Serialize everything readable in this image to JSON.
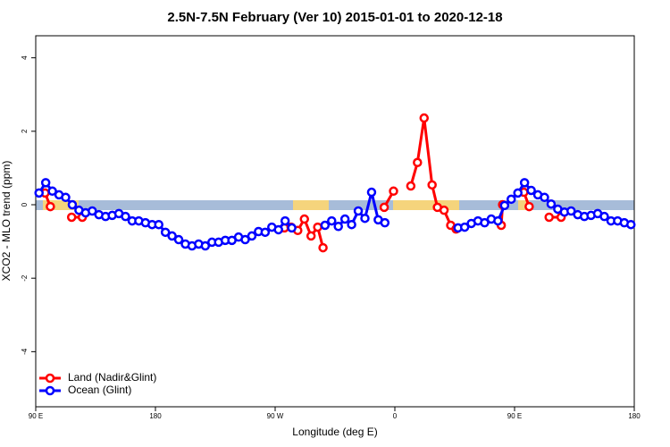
{
  "chart_data": {
    "type": "line",
    "title": "2.5N-7.5N February (Ver 10)   2015-01-01 to 2020-12-18",
    "x_label": "Longitude (deg E)",
    "y_label": "XCO2 - MLO trend (ppm)",
    "xlim": [
      90,
      540
    ],
    "ylim": [
      -5.5,
      4.6
    ],
    "xticks": [
      {
        "value": 90,
        "label": "90 E"
      },
      {
        "value": 180,
        "label": "180"
      },
      {
        "value": 270,
        "label": "90 W"
      },
      {
        "value": 360,
        "label": "0"
      },
      {
        "value": 450,
        "label": "90 E"
      },
      {
        "value": 540,
        "label": "180"
      }
    ],
    "yticks": [
      -4,
      -2,
      0,
      2,
      4
    ],
    "legend": "bottom-left",
    "series": [
      {
        "name": "Land (Nadir&Glint)",
        "color": "#ff0000",
        "x": [
          97,
          101,
          null,
          117,
          125,
          null,
          277,
          282,
          287,
          292,
          297,
          302,
          306,
          null,
          352,
          359,
          null,
          372,
          377,
          382,
          388,
          392,
          397,
          402,
          406,
          null,
          440,
          441,
          null,
          457,
          461,
          null,
          476,
          485
        ],
        "values": [
          0.32,
          -0.05,
          null,
          -0.34,
          -0.34,
          null,
          -0.63,
          -0.61,
          -0.7,
          -0.39,
          -0.85,
          -0.61,
          -1.17,
          null,
          -0.07,
          0.37,
          null,
          0.51,
          1.15,
          2.36,
          0.54,
          -0.07,
          -0.15,
          -0.56,
          -0.66,
          null,
          -0.56,
          0,
          null,
          0.34,
          -0.05,
          null,
          -0.34,
          -0.34
        ]
      },
      {
        "name": "Ocean (Glint)",
        "color": "#0000ff",
        "x": [
          92.5,
          97.5,
          102.5,
          107.5,
          112.5,
          117.5,
          122.5,
          127.5,
          132.5,
          137.5,
          142.5,
          147.5,
          152.5,
          157.5,
          162.5,
          167.5,
          172.5,
          177.5,
          182.5,
          187.5,
          192.5,
          197.5,
          202.5,
          207.5,
          212.5,
          217.5,
          222.5,
          227.5,
          232.5,
          237.5,
          242.5,
          247.5,
          252.5,
          257.5,
          262.5,
          267.5,
          272.5,
          277.5,
          282.5,
          null,
          307.5,
          312.5,
          317.5,
          322.5,
          327.5,
          332.5,
          337.5,
          342.5,
          347.5,
          352.5,
          null,
          407.5,
          412.5,
          417.5,
          422.5,
          427.5,
          432.5,
          437.5,
          442.5,
          447.5,
          452.5,
          457.5,
          462.5,
          467.5,
          472.5,
          477.5,
          482.5,
          487.5,
          492.5,
          497.5,
          502.5,
          507.5,
          512.5,
          517.5,
          522.5,
          527.5,
          532.5,
          537.5
        ],
        "values": [
          0.32,
          0.6,
          0.37,
          0.27,
          0.2,
          0,
          -0.15,
          -0.22,
          -0.17,
          -0.27,
          -0.32,
          -0.29,
          -0.24,
          -0.32,
          -0.44,
          -0.44,
          -0.49,
          -0.54,
          -0.54,
          -0.75,
          -0.85,
          -0.95,
          -1.07,
          -1.12,
          -1.07,
          -1.12,
          -1.02,
          -1.02,
          -0.97,
          -0.97,
          -0.88,
          -0.95,
          -0.85,
          -0.73,
          -0.75,
          -0.61,
          -0.68,
          -0.44,
          -0.63,
          null,
          -0.56,
          -0.44,
          -0.59,
          -0.39,
          -0.54,
          -0.17,
          -0.37,
          0.34,
          -0.41,
          -0.49,
          null,
          -0.63,
          -0.61,
          -0.51,
          -0.44,
          -0.49,
          -0.39,
          -0.44,
          -0.02,
          0.15,
          0.32,
          0.6,
          0.39,
          0.27,
          0.2,
          0.02,
          -0.12,
          -0.2,
          -0.17,
          -0.27,
          -0.32,
          -0.29,
          -0.24,
          -0.32,
          -0.44,
          -0.44,
          -0.49,
          -0.54
        ]
      }
    ]
  }
}
